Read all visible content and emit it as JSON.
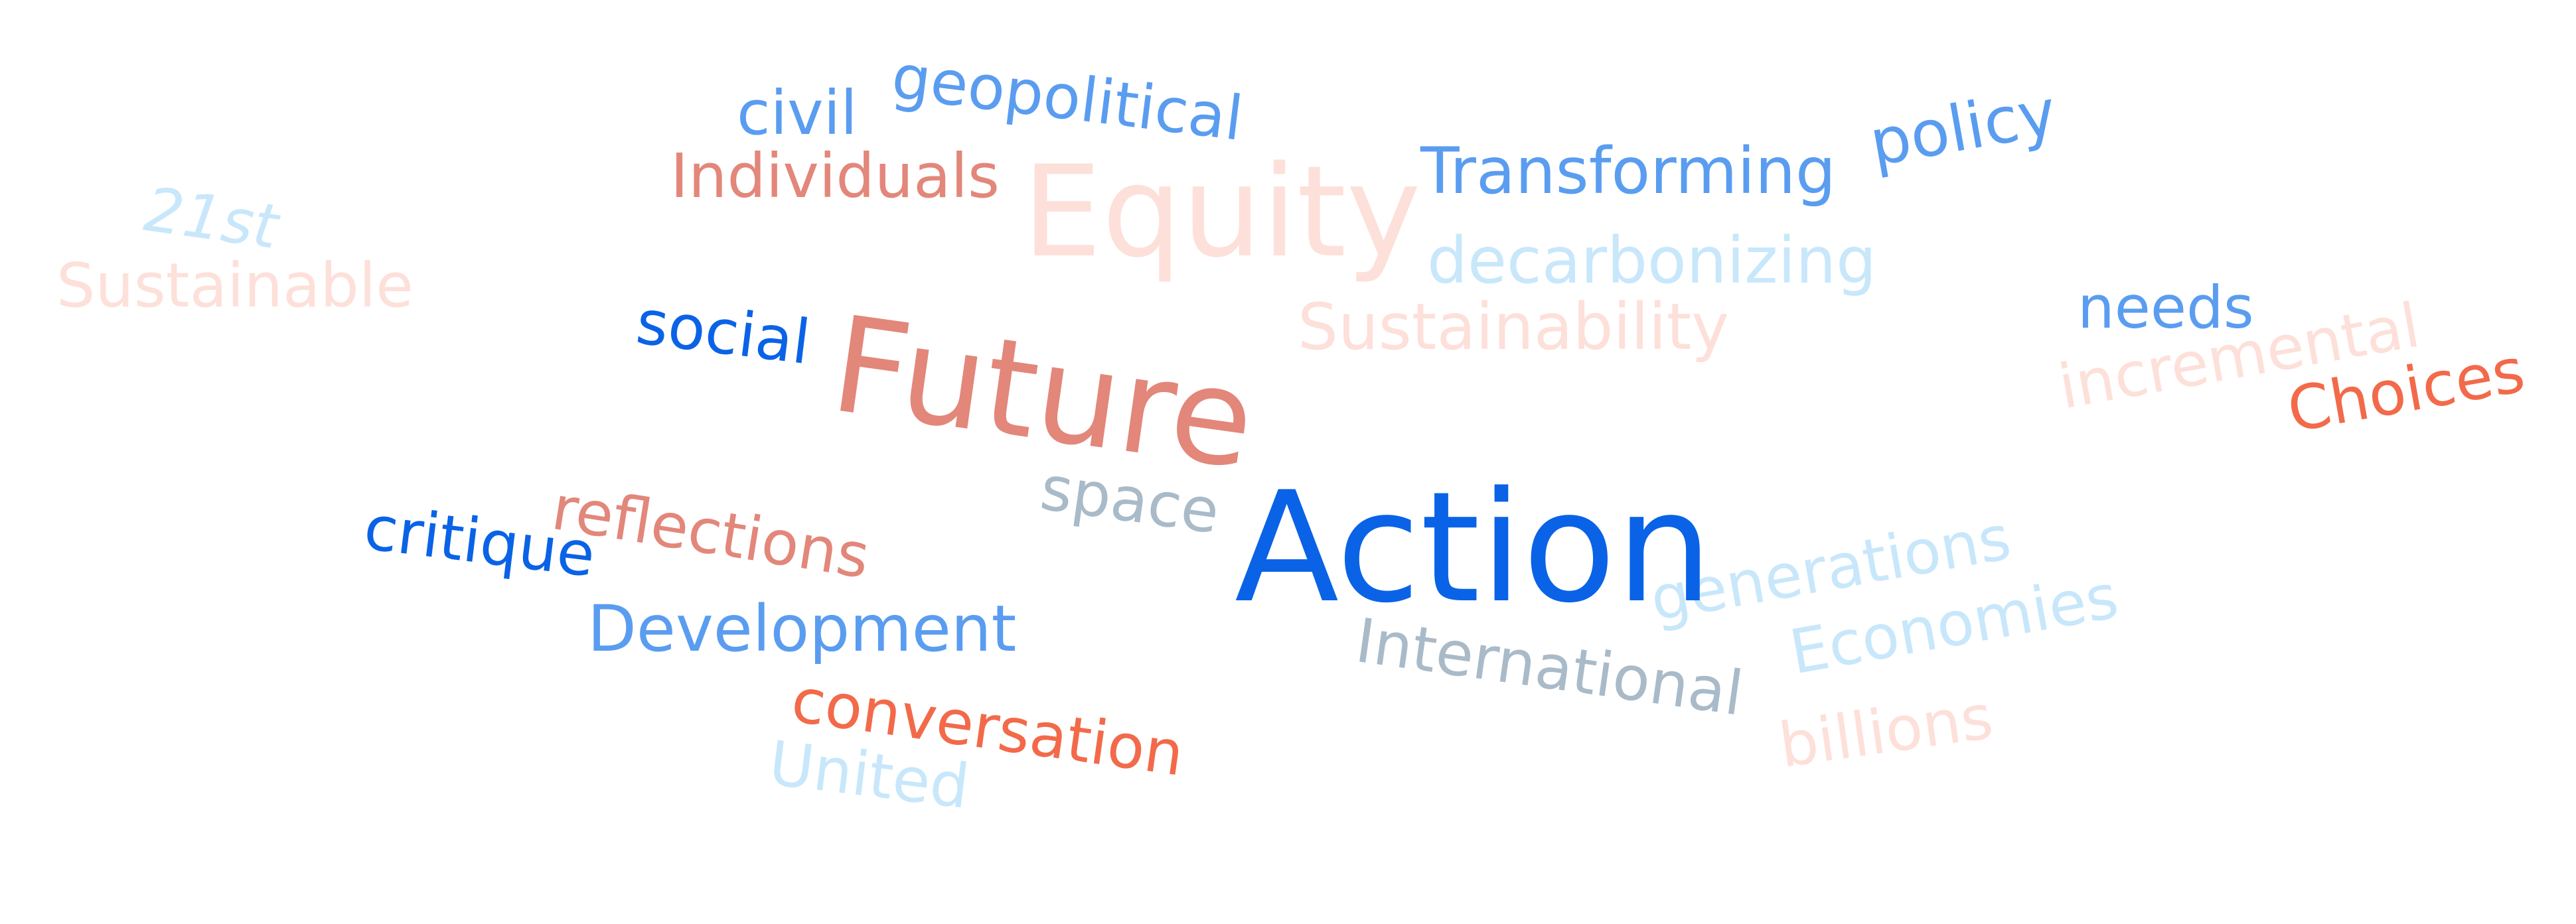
{
  "words": {
    "action": {
      "text": "Action",
      "color": "#0a63e6"
    },
    "future": {
      "text": "Future",
      "color": "#e2877a"
    },
    "equity": {
      "text": "Equity",
      "color": "#fde0d9"
    },
    "transforming": {
      "text": "Transforming",
      "color": "#5a9df0"
    },
    "policy": {
      "text": "policy",
      "color": "#5a9df0"
    },
    "decarbonizing": {
      "text": "decarbonizing",
      "color": "#c8e7fb"
    },
    "sustainability": {
      "text": "Sustainability",
      "color": "#fde0d9"
    },
    "civil": {
      "text": "civil",
      "color": "#5a9df0"
    },
    "geopolitical": {
      "text": "geopolitical",
      "color": "#5a9df0"
    },
    "individuals": {
      "text": "Individuals",
      "color": "#e2877a"
    },
    "twentyfirst": {
      "text": "21st",
      "color": "#c8e7fb"
    },
    "sustainable": {
      "text": "Sustainable",
      "color": "#fde0d9"
    },
    "social": {
      "text": "social",
      "color": "#0a63e6"
    },
    "needs": {
      "text": "needs",
      "color": "#5a9df0"
    },
    "incremental": {
      "text": "incremental",
      "color": "#fde0d9"
    },
    "choices": {
      "text": "Choices",
      "color": "#f26a4a"
    },
    "space": {
      "text": "space",
      "color": "#a9bac8"
    },
    "reflections": {
      "text": "reflections",
      "color": "#e2877a"
    },
    "critique": {
      "text": "critique",
      "color": "#0a63e6"
    },
    "development": {
      "text": "Development",
      "color": "#5a9df0"
    },
    "generations": {
      "text": "generations",
      "color": "#c8e7fb"
    },
    "economies": {
      "text": "Economies",
      "color": "#c8e7fb"
    },
    "international": {
      "text": "International",
      "color": "#a9bac8"
    },
    "billions": {
      "text": "billions",
      "color": "#fde0d9"
    },
    "conversation": {
      "text": "conversation",
      "color": "#f26a4a"
    },
    "united": {
      "text": "United",
      "color": "#c8e7fb"
    }
  }
}
